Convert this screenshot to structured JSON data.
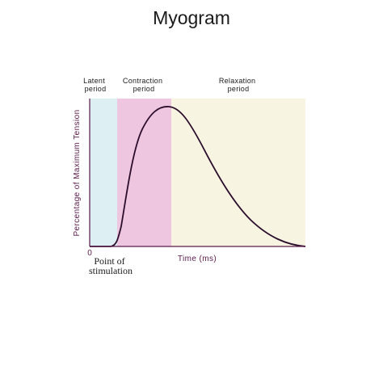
{
  "title": "Myogram",
  "periods": [
    {
      "key": "latent",
      "line1": "Latent",
      "line2": "period",
      "color": "#deeff4"
    },
    {
      "key": "contraction",
      "line1": "Contraction",
      "line2": "period",
      "color": "#eec6e0"
    },
    {
      "key": "relaxation",
      "line1": "Relaxation",
      "line2": "period",
      "color": "#f8f4e2"
    }
  ],
  "y_axis_label": "Percentage of Maximum Tension",
  "x_axis_label": "Time (ms)",
  "origin_label": "0",
  "stimulation_label": {
    "line1": "Point of",
    "line2": "stimulation"
  },
  "colors": {
    "axis": "#5a1a4a",
    "curve": "#2b0d2c",
    "text": "#1a1a1a",
    "label_purple": "#5a1a4a"
  }
}
